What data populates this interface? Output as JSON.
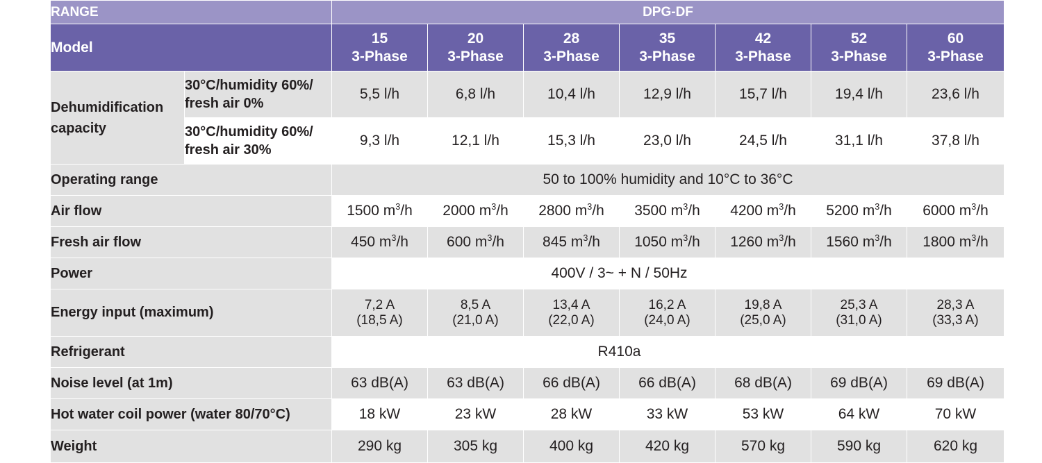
{
  "header": {
    "range_label": "RANGE",
    "range_value": "DPG-DF",
    "model_label": "Model"
  },
  "models": [
    {
      "size": "15",
      "phase": "3-Phase"
    },
    {
      "size": "20",
      "phase": "3-Phase"
    },
    {
      "size": "28",
      "phase": "3-Phase"
    },
    {
      "size": "35",
      "phase": "3-Phase"
    },
    {
      "size": "42",
      "phase": "3-Phase"
    },
    {
      "size": "52",
      "phase": "3-Phase"
    },
    {
      "size": "60",
      "phase": "3-Phase"
    }
  ],
  "dehumidification": {
    "label": "Dehumidification capacity",
    "conditions": [
      {
        "label_line1": "30°C/humidity 60%/",
        "label_line2": "fresh air 0%",
        "values": [
          "5,5 l/h",
          "6,8 l/h",
          "10,4 l/h",
          "12,9 l/h",
          "15,7 l/h",
          "19,4 l/h",
          "23,6 l/h"
        ]
      },
      {
        "label_line1": "30°C/humidity 60%/",
        "label_line2": "fresh air 30%",
        "values": [
          "9,3 l/h",
          "12,1 l/h",
          "15,3 l/h",
          "23,0 l/h",
          "24,5 l/h",
          "31,1 l/h",
          "37,8 l/h"
        ]
      }
    ]
  },
  "operating_range": {
    "label": "Operating range",
    "value": "50 to 100% humidity and 10°C to 36°C"
  },
  "air_flow": {
    "label": "Air flow",
    "values": [
      "1500",
      "2000",
      "2800",
      "3500",
      "4200",
      "5200",
      "6000"
    ],
    "unit_prefix": "m",
    "unit_sup": "3",
    "unit_suffix": "/h"
  },
  "fresh_air_flow": {
    "label": "Fresh air flow",
    "values": [
      "450",
      "600",
      "845",
      "1050",
      "1260",
      "1560",
      "1800"
    ],
    "unit_prefix": "m",
    "unit_sup": "3",
    "unit_suffix": "/h"
  },
  "power": {
    "label": "Power",
    "value": "400V / 3~ + N / 50Hz"
  },
  "energy_input": {
    "label": "Energy input (maximum)",
    "values": [
      {
        "nominal": "7,2 A",
        "max": "(18,5 A)"
      },
      {
        "nominal": "8,5 A",
        "max": "(21,0 A)"
      },
      {
        "nominal": "13,4 A",
        "max": "(22,0 A)"
      },
      {
        "nominal": "16,2 A",
        "max": "(24,0 A)"
      },
      {
        "nominal": "19,8 A",
        "max": "(25,0 A)"
      },
      {
        "nominal": "25,3 A",
        "max": "(31,0 A)"
      },
      {
        "nominal": "28,3 A",
        "max": "(33,3 A)"
      }
    ]
  },
  "refrigerant": {
    "label": "Refrigerant",
    "value": "R410a"
  },
  "noise_level": {
    "label": "Noise level (at 1m)",
    "values": [
      "63 dB(A)",
      "63 dB(A)",
      "66 dB(A)",
      "66 dB(A)",
      "68 dB(A)",
      "69 dB(A)",
      "69 dB(A)"
    ]
  },
  "hot_water_coil": {
    "label": "Hot water coil power (water 80/70°C)",
    "values": [
      "18 kW",
      "23 kW",
      "28 kW",
      "33 kW",
      "53 kW",
      "64 kW",
      "70 kW"
    ]
  },
  "weight": {
    "label": "Weight",
    "values": [
      "290 kg",
      "305 kg",
      "400 kg",
      "420 kg",
      "570 kg",
      "590 kg",
      "620 kg"
    ]
  }
}
